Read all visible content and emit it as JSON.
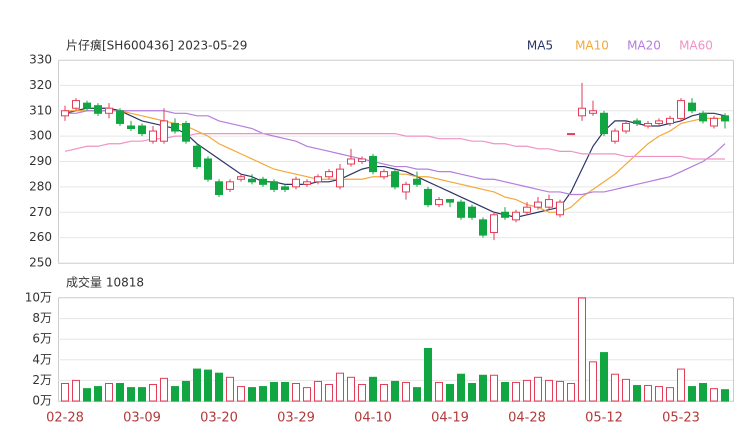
{
  "chart_data": [
    {
      "type": "candlestick",
      "title": "片仔癀[SH600436] 2023-05-29",
      "categories": [
        "02-28",
        null,
        null,
        null,
        null,
        null,
        null,
        "03-09",
        null,
        null,
        null,
        null,
        null,
        null,
        "03-20",
        null,
        null,
        null,
        null,
        null,
        null,
        "03-29",
        null,
        null,
        null,
        null,
        null,
        null,
        "04-10",
        null,
        null,
        null,
        null,
        null,
        null,
        "04-19",
        null,
        null,
        null,
        null,
        null,
        null,
        "04-28",
        null,
        null,
        null,
        null,
        null,
        null,
        "05-12",
        null,
        null,
        null,
        null,
        null,
        null,
        "05-23",
        null,
        null,
        null,
        null
      ],
      "open": [
        308,
        311,
        313,
        312,
        309,
        310,
        304,
        304,
        298,
        298,
        305,
        305,
        296,
        291,
        282,
        279,
        283,
        283,
        283,
        282,
        280,
        280,
        281,
        282,
        284,
        280,
        289,
        290,
        292,
        284,
        286,
        278,
        283,
        279,
        273,
        275,
        274,
        272,
        267,
        262,
        270,
        267,
        270,
        272,
        272,
        269,
        301,
        308,
        309,
        309,
        298,
        302,
        306,
        304,
        305,
        305,
        307,
        313,
        309,
        304,
        308
      ],
      "close": [
        310,
        314,
        311,
        309,
        311,
        305,
        303,
        301,
        302,
        306,
        302,
        298,
        288,
        283,
        277,
        282,
        284,
        282,
        281,
        279,
        279,
        283,
        282,
        284,
        286,
        287,
        291,
        291,
        286,
        286,
        280,
        281,
        281,
        273,
        275,
        274,
        268,
        268,
        261,
        269,
        268,
        270,
        272,
        274,
        275,
        274,
        301,
        311,
        310,
        301,
        302,
        305,
        305,
        305,
        306,
        307,
        314,
        310,
        306,
        307,
        306
      ],
      "high": [
        312,
        315,
        314,
        313,
        313,
        311,
        306,
        305,
        304,
        311,
        307,
        306,
        297,
        292,
        283,
        283,
        285,
        285,
        284,
        283,
        281,
        284,
        283,
        285,
        287,
        289,
        295,
        292,
        293,
        287,
        287,
        282,
        286,
        280,
        276,
        275,
        275,
        273,
        268,
        270,
        272,
        271,
        274,
        276,
        277,
        275,
        301,
        321,
        314,
        310,
        303,
        306,
        307,
        306,
        307,
        308,
        315,
        315,
        310,
        308,
        309
      ],
      "low": [
        306,
        310,
        310,
        308,
        307,
        304,
        302,
        300,
        297,
        297,
        301,
        297,
        287,
        282,
        276,
        278,
        282,
        281,
        280,
        278,
        278,
        279,
        280,
        281,
        283,
        279,
        288,
        289,
        285,
        283,
        279,
        275,
        280,
        272,
        272,
        272,
        267,
        267,
        260,
        259,
        267,
        266,
        269,
        271,
        271,
        268,
        301,
        306,
        308,
        300,
        297,
        301,
        304,
        303,
        304,
        304,
        306,
        309,
        305,
        303,
        303
      ],
      "up_color": "#e23e57",
      "down_color": "#12a643",
      "series": [
        {
          "name": "MA5",
          "color": "#2b3566",
          "values": [
            309,
            310,
            311,
            311,
            311,
            310,
            308,
            306,
            305,
            304,
            303,
            301,
            297,
            294,
            291,
            288,
            285,
            284,
            282,
            282,
            281,
            281,
            281,
            282,
            282,
            283,
            285,
            287,
            288,
            288,
            287,
            286,
            284,
            282,
            280,
            278,
            276,
            274,
            272,
            270,
            269,
            268,
            269,
            270,
            271,
            272,
            278,
            287,
            296,
            302,
            306,
            306,
            305,
            304,
            304,
            305,
            306,
            308,
            309,
            309,
            308
          ]
        },
        {
          "name": "MA10",
          "color": "#f2a93b",
          "values": [
            310,
            310,
            310,
            310,
            310,
            310,
            309,
            308,
            307,
            306,
            305,
            304,
            302,
            300,
            297,
            295,
            293,
            291,
            289,
            287,
            286,
            285,
            284,
            283,
            283,
            283,
            283,
            283,
            284,
            284,
            285,
            285,
            284,
            284,
            283,
            282,
            281,
            280,
            279,
            278,
            276,
            275,
            273,
            272,
            270,
            270,
            272,
            276,
            279,
            282,
            285,
            289,
            293,
            297,
            300,
            302,
            305,
            306,
            307,
            307,
            307
          ]
        },
        {
          "name": "MA20",
          "color": "#b57ddd",
          "values": [
            309,
            309,
            310,
            310,
            310,
            310,
            310,
            310,
            310,
            310,
            309,
            309,
            308,
            308,
            306,
            305,
            304,
            303,
            301,
            300,
            299,
            298,
            296,
            295,
            294,
            293,
            292,
            291,
            290,
            289,
            288,
            288,
            287,
            287,
            286,
            286,
            285,
            284,
            283,
            283,
            282,
            281,
            280,
            279,
            278,
            278,
            277,
            277,
            278,
            278,
            279,
            280,
            281,
            282,
            283,
            284,
            286,
            288,
            290,
            293,
            297
          ]
        },
        {
          "name": "MA60",
          "color": "#ef93c6",
          "values": [
            294,
            295,
            296,
            296,
            297,
            297,
            298,
            298,
            299,
            299,
            300,
            300,
            301,
            301,
            301,
            301,
            301,
            301,
            301,
            301,
            301,
            301,
            301,
            301,
            301,
            301,
            301,
            301,
            301,
            301,
            301,
            300,
            300,
            300,
            299,
            299,
            299,
            298,
            298,
            297,
            297,
            296,
            296,
            295,
            295,
            294,
            294,
            293,
            293,
            293,
            293,
            292,
            292,
            292,
            292,
            292,
            292,
            291,
            291,
            291,
            291
          ]
        }
      ],
      "ylim": [
        250,
        330
      ],
      "yticks": [
        250,
        260,
        270,
        280,
        290,
        300,
        310,
        320,
        330
      ],
      "grid": true
    },
    {
      "type": "bar",
      "title": "成交量 10818",
      "values": [
        1.7,
        2,
        1.2,
        1.4,
        1.7,
        1.7,
        1.3,
        1.3,
        1.6,
        2.2,
        1.4,
        1.9,
        3.1,
        3.0,
        2.7,
        2.3,
        1.4,
        1.3,
        1.4,
        1.8,
        1.8,
        1.7,
        1.3,
        1.9,
        1.6,
        2.7,
        2.3,
        1.6,
        2.3,
        1.6,
        1.9,
        1.8,
        1.3,
        5.1,
        1.8,
        1.6,
        2.6,
        1.7,
        2.5,
        2.5,
        1.8,
        1.8,
        2.0,
        2.3,
        2.0,
        1.9,
        1.7,
        10.0,
        3.8,
        4.7,
        2.6,
        2.1,
        1.5,
        1.5,
        1.4,
        1.3,
        3.1,
        1.4,
        1.7,
        1.2,
        1.1
      ],
      "ylim": [
        0,
        10
      ],
      "yticks": [
        {
          "value": 0,
          "label": "0万"
        },
        {
          "value": 2,
          "label": "2万"
        },
        {
          "value": 4,
          "label": "4万"
        },
        {
          "value": 6,
          "label": "6万"
        },
        {
          "value": 8,
          "label": "8万"
        },
        {
          "value": 10,
          "label": "10万"
        }
      ],
      "grid": true
    }
  ]
}
